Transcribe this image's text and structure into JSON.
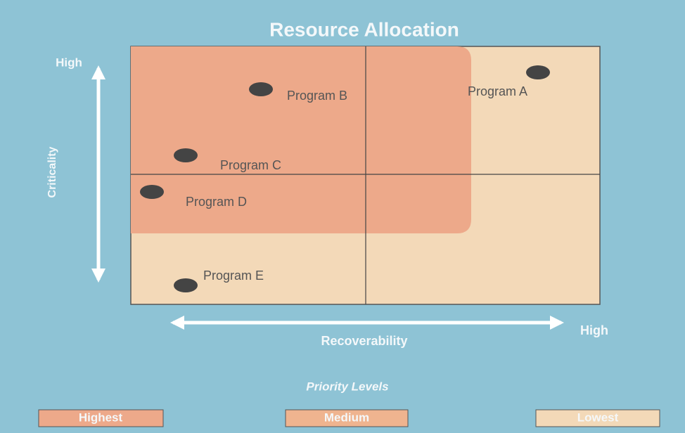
{
  "title": "Resource Allocation",
  "y_axis": {
    "label": "Criticality",
    "high": "High"
  },
  "x_axis": {
    "label": "Recoverability",
    "high": "High"
  },
  "programs": [
    {
      "label": "Program A"
    },
    {
      "label": "Program B"
    },
    {
      "label": "Program C"
    },
    {
      "label": "Program D"
    },
    {
      "label": "Program E"
    }
  ],
  "legend": {
    "title": "Priority Levels",
    "items": [
      "Highest",
      "Medium",
      "Lowest"
    ]
  }
}
